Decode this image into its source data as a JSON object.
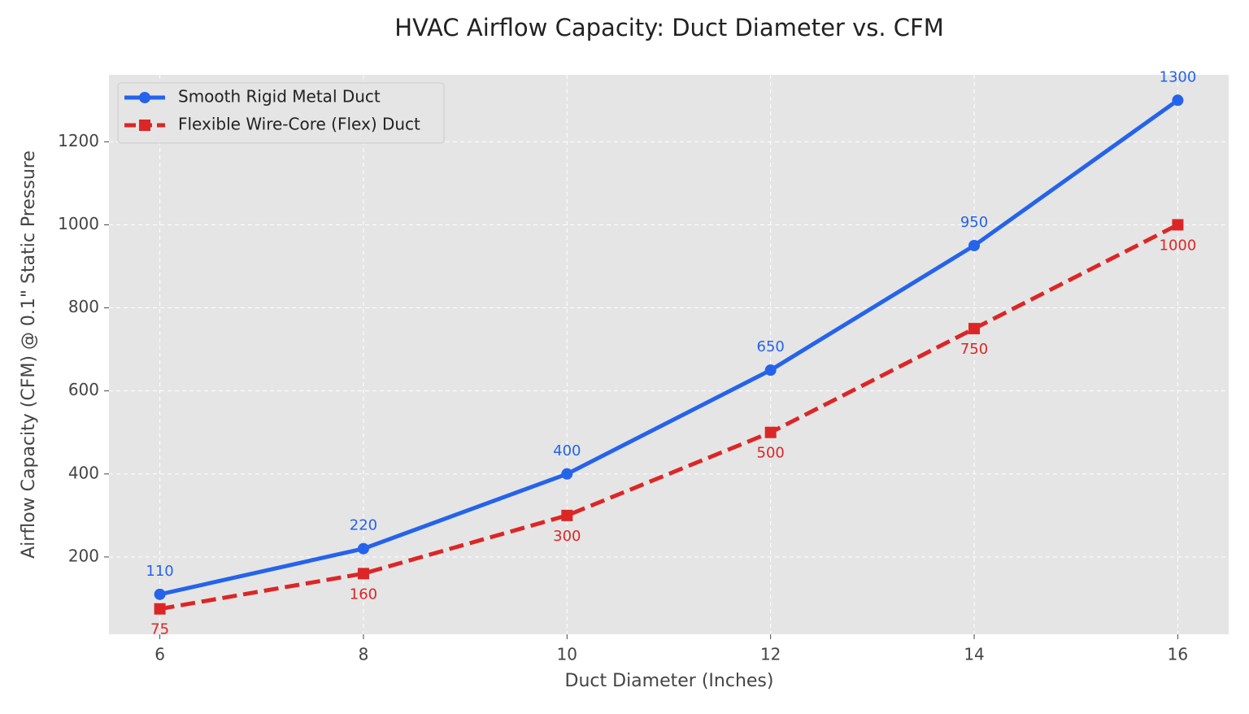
{
  "chart_data": {
    "type": "line",
    "title": "HVAC Airflow Capacity: Duct Diameter vs. CFM",
    "x_label": "Duct Diameter (Inches)",
    "y_label": "Airflow Capacity (CFM) @ 0.1\" Static Pressure",
    "x": [
      6,
      8,
      10,
      12,
      14,
      16
    ],
    "series": [
      {
        "name": "Smooth Rigid Metal Duct",
        "color": "#2563eb",
        "marker": "circle",
        "linestyle": "solid",
        "values": [
          110,
          220,
          400,
          650,
          950,
          1300
        ]
      },
      {
        "name": "Flexible Wire-Core (Flex) Duct",
        "color": "#dc2626",
        "marker": "square",
        "linestyle": "dashed",
        "values": [
          75,
          160,
          300,
          500,
          750,
          1000
        ]
      }
    ],
    "xlim": [
      5.5,
      16.5
    ],
    "xticks": [
      6,
      8,
      10,
      12,
      14,
      16
    ],
    "ylim": [
      13.75,
      1361.25
    ],
    "yticks": [
      200,
      400,
      600,
      800,
      1000,
      1200
    ],
    "grid": true,
    "legend": "upper-left"
  }
}
